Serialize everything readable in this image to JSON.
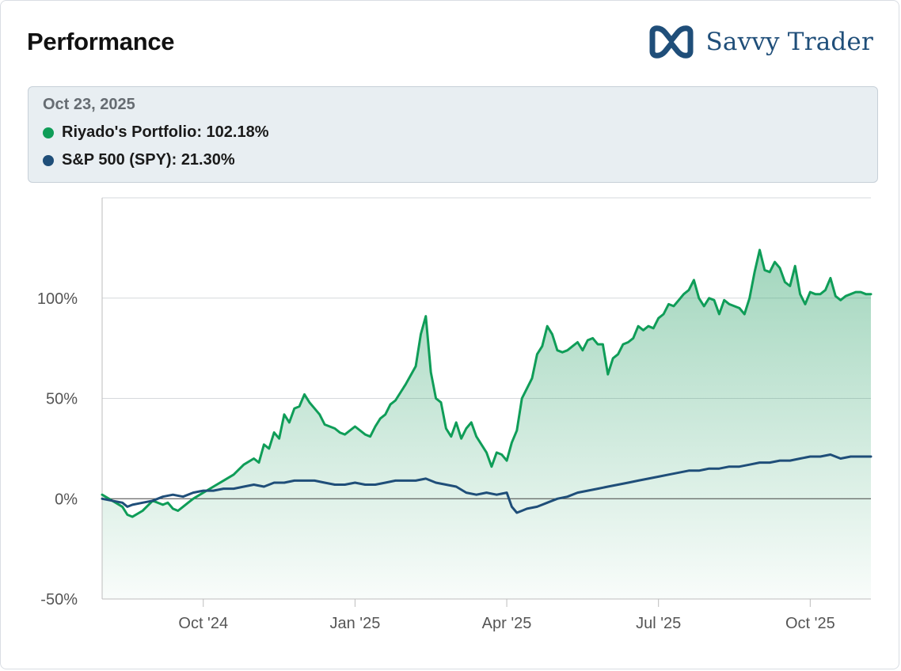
{
  "header": {
    "title": "Performance",
    "brand": "Savvy Trader"
  },
  "tooltip": {
    "date": "Oct 23, 2025",
    "rows": [
      {
        "label": "Riyado's Portfolio",
        "value": "102.18%",
        "color": "#0f9d58"
      },
      {
        "label": "S&P 500 (SPY)",
        "value": "21.30%",
        "color": "#1f4e79"
      }
    ]
  },
  "colors": {
    "portfolio": "#0f9d58",
    "benchmark": "#1f4e79",
    "brand": "#1f4e79",
    "area": "#2fa36b"
  },
  "chart_data": {
    "type": "line",
    "title": "Performance",
    "xlabel": "",
    "ylabel": "",
    "ylim": [
      -50,
      150
    ],
    "xlim": [
      0,
      15.2
    ],
    "yticks": [
      -50,
      0,
      50,
      100
    ],
    "ytick_labels": [
      "-50%",
      "0%",
      "50%",
      "100%"
    ],
    "xticks": [
      2,
      5,
      8,
      11,
      14
    ],
    "xtick_labels": [
      "Oct '24",
      "Jan '25",
      "Apr '25",
      "Jul '25",
      "Oct '25"
    ],
    "grid": true,
    "series": [
      {
        "name": "Riyado's Portfolio",
        "x": [
          0,
          0.2,
          0.4,
          0.5,
          0.6,
          0.8,
          1.0,
          1.2,
          1.3,
          1.4,
          1.5,
          1.6,
          1.7,
          1.8,
          2.0,
          2.2,
          2.4,
          2.6,
          2.8,
          3.0,
          3.1,
          3.2,
          3.3,
          3.4,
          3.5,
          3.6,
          3.7,
          3.8,
          3.9,
          4.0,
          4.1,
          4.2,
          4.3,
          4.4,
          4.5,
          4.6,
          4.7,
          4.8,
          5.0,
          5.2,
          5.3,
          5.4,
          5.5,
          5.6,
          5.7,
          5.8,
          6.0,
          6.2,
          6.3,
          6.4,
          6.5,
          6.6,
          6.7,
          6.8,
          6.9,
          7.0,
          7.1,
          7.2,
          7.3,
          7.4,
          7.5,
          7.6,
          7.7,
          7.8,
          7.9,
          8.0,
          8.1,
          8.2,
          8.3,
          8.4,
          8.5,
          8.6,
          8.7,
          8.8,
          8.9,
          9.0,
          9.1,
          9.2,
          9.3,
          9.4,
          9.5,
          9.6,
          9.7,
          9.8,
          9.9,
          10.0,
          10.1,
          10.2,
          10.3,
          10.4,
          10.5,
          10.6,
          10.7,
          10.8,
          10.9,
          11.0,
          11.1,
          11.2,
          11.3,
          11.4,
          11.5,
          11.6,
          11.7,
          11.8,
          11.9,
          12.0,
          12.1,
          12.2,
          12.3,
          12.4,
          12.5,
          12.6,
          12.7,
          12.8,
          12.9,
          13.0,
          13.1,
          13.2,
          13.3,
          13.4,
          13.5,
          13.6,
          13.7,
          13.8,
          13.9,
          14.0,
          14.1,
          14.2,
          14.3,
          14.4,
          14.5,
          14.6,
          14.7,
          14.8,
          14.9,
          15.0,
          15.1,
          15.2
        ],
        "values": [
          2,
          -1,
          -4,
          -8,
          -9,
          -6,
          -1,
          -3,
          -2,
          -5,
          -6,
          -4,
          -2,
          0,
          3,
          6,
          9,
          12,
          17,
          20,
          18,
          27,
          25,
          33,
          30,
          42,
          38,
          45,
          46,
          52,
          48,
          45,
          42,
          37,
          36,
          35,
          33,
          32,
          36,
          32,
          31,
          36,
          40,
          42,
          47,
          49,
          57,
          66,
          82,
          91,
          63,
          50,
          48,
          35,
          31,
          38,
          30,
          35,
          38,
          31,
          27,
          23,
          16,
          23,
          22,
          19,
          28,
          34,
          50,
          55,
          60,
          72,
          76,
          86,
          82,
          74,
          73,
          74,
          76,
          78,
          74,
          79,
          80,
          77,
          77,
          62,
          70,
          72,
          77,
          78,
          80,
          86,
          84,
          86,
          85,
          90,
          92,
          97,
          96,
          99,
          102,
          104,
          109,
          100,
          96,
          100,
          99,
          92,
          99,
          97,
          96,
          95,
          92,
          100,
          113,
          124,
          114,
          113,
          118,
          115,
          108,
          106,
          116,
          102,
          97,
          103,
          102,
          102,
          104,
          110,
          101,
          99,
          101,
          102,
          103,
          103,
          102,
          102
        ]
      },
      {
        "name": "S&P 500 (SPY)",
        "x": [
          0,
          0.2,
          0.4,
          0.5,
          0.6,
          0.8,
          1.0,
          1.2,
          1.4,
          1.6,
          1.8,
          2.0,
          2.2,
          2.4,
          2.6,
          2.8,
          3.0,
          3.2,
          3.4,
          3.6,
          3.8,
          4.0,
          4.2,
          4.4,
          4.6,
          4.8,
          5.0,
          5.2,
          5.4,
          5.6,
          5.8,
          6.0,
          6.2,
          6.4,
          6.6,
          6.8,
          7.0,
          7.2,
          7.4,
          7.6,
          7.8,
          8.0,
          8.1,
          8.2,
          8.3,
          8.4,
          8.6,
          8.8,
          9.0,
          9.2,
          9.4,
          9.6,
          9.8,
          10.0,
          10.2,
          10.4,
          10.6,
          10.8,
          11.0,
          11.2,
          11.4,
          11.6,
          11.8,
          12.0,
          12.2,
          12.4,
          12.6,
          12.8,
          13.0,
          13.2,
          13.4,
          13.6,
          13.8,
          14.0,
          14.2,
          14.4,
          14.6,
          14.8,
          15.0,
          15.2
        ],
        "values": [
          0,
          -1,
          -2,
          -4,
          -3,
          -2,
          -1,
          1,
          2,
          1,
          3,
          4,
          4,
          5,
          5,
          6,
          7,
          6,
          8,
          8,
          9,
          9,
          9,
          8,
          7,
          7,
          8,
          7,
          7,
          8,
          9,
          9,
          9,
          10,
          8,
          7,
          6,
          3,
          2,
          3,
          2,
          3,
          -4,
          -7,
          -6,
          -5,
          -4,
          -2,
          0,
          1,
          3,
          4,
          5,
          6,
          7,
          8,
          9,
          10,
          11,
          12,
          13,
          14,
          14,
          15,
          15,
          16,
          16,
          17,
          18,
          18,
          19,
          19,
          20,
          21,
          21,
          22,
          20,
          21,
          21,
          21
        ]
      }
    ]
  }
}
